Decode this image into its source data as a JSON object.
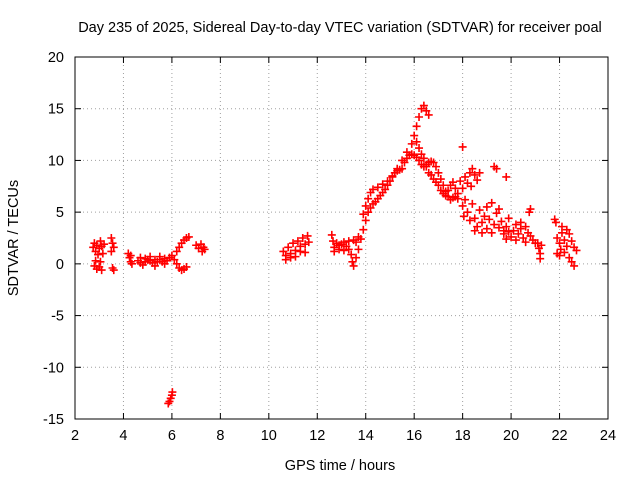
{
  "chart_data": {
    "type": "scatter",
    "title": "Day 235 of 2025, Sidereal Day-to-day VTEC variation (SDTVAR) for receiver poal",
    "xlabel": "GPS time / hours",
    "ylabel": "SDTVAR / TECUs",
    "xlim": [
      2,
      24
    ],
    "ylim": [
      -15,
      20
    ],
    "xticks": [
      2,
      4,
      6,
      8,
      10,
      12,
      14,
      16,
      18,
      20,
      22,
      24
    ],
    "yticks": [
      -15,
      -10,
      -5,
      0,
      5,
      10,
      15,
      20
    ],
    "grid": true,
    "marker": "+",
    "color": "#ff0000",
    "series": [
      {
        "name": "SDTVAR",
        "points": [
          [
            2.75,
            1.6
          ],
          [
            2.8,
            2.0
          ],
          [
            2.85,
            1.2
          ],
          [
            2.9,
            1.8
          ],
          [
            2.95,
            0.9
          ],
          [
            3.0,
            1.5
          ],
          [
            3.05,
            2.2
          ],
          [
            3.1,
            1.7
          ],
          [
            3.15,
            1.0
          ],
          [
            3.2,
            1.9
          ],
          [
            2.8,
            -0.2
          ],
          [
            2.9,
            -0.5
          ],
          [
            3.0,
            -0.3
          ],
          [
            3.1,
            -0.6
          ],
          [
            2.85,
            0.3
          ],
          [
            3.05,
            0.2
          ],
          [
            3.5,
            2.5
          ],
          [
            3.55,
            2.0
          ],
          [
            3.5,
            1.2
          ],
          [
            3.6,
            1.6
          ],
          [
            3.55,
            -0.4
          ],
          [
            3.6,
            -0.6
          ],
          [
            4.2,
            1.0
          ],
          [
            4.25,
            0.6
          ],
          [
            4.3,
            0.8
          ],
          [
            4.3,
            0.2
          ],
          [
            4.35,
            0.0
          ],
          [
            4.6,
            0.3
          ],
          [
            4.7,
            0.1
          ],
          [
            4.8,
            -0.1
          ],
          [
            4.9,
            0.2
          ],
          [
            5.0,
            0.4
          ],
          [
            5.1,
            0.3
          ],
          [
            5.2,
            0.1
          ],
          [
            5.3,
            -0.2
          ],
          [
            5.4,
            0.2
          ],
          [
            5.5,
            0.4
          ],
          [
            5.6,
            0.2
          ],
          [
            5.7,
            0.0
          ],
          [
            5.8,
            0.3
          ],
          [
            4.7,
            0.6
          ],
          [
            4.9,
            0.5
          ],
          [
            5.1,
            0.7
          ],
          [
            5.3,
            0.4
          ],
          [
            5.5,
            0.7
          ],
          [
            5.7,
            0.5
          ],
          [
            5.9,
            0.6
          ],
          [
            6.0,
            0.8
          ],
          [
            6.1,
            0.4
          ],
          [
            6.2,
            0.0
          ],
          [
            6.3,
            -0.4
          ],
          [
            6.4,
            -0.6
          ],
          [
            6.5,
            -0.5
          ],
          [
            6.6,
            -0.3
          ],
          [
            6.2,
            1.2
          ],
          [
            6.3,
            1.6
          ],
          [
            6.4,
            2.0
          ],
          [
            6.5,
            2.3
          ],
          [
            6.6,
            2.5
          ],
          [
            6.7,
            2.6
          ],
          [
            7.0,
            1.8
          ],
          [
            7.1,
            1.5
          ],
          [
            7.2,
            1.9
          ],
          [
            7.25,
            1.2
          ],
          [
            7.3,
            1.6
          ],
          [
            7.35,
            1.4
          ],
          [
            5.85,
            -13.5
          ],
          [
            5.9,
            -13.3
          ],
          [
            5.95,
            -13.0
          ],
          [
            6.0,
            -12.7
          ],
          [
            6.02,
            -12.4
          ],
          [
            10.6,
            1.2
          ],
          [
            10.7,
            0.8
          ],
          [
            10.8,
            1.6
          ],
          [
            10.9,
            1.0
          ],
          [
            11.0,
            2.0
          ],
          [
            11.1,
            1.3
          ],
          [
            11.2,
            2.2
          ],
          [
            11.3,
            1.7
          ],
          [
            11.4,
            2.5
          ],
          [
            11.5,
            1.9
          ],
          [
            11.6,
            2.7
          ],
          [
            11.65,
            2.1
          ],
          [
            10.7,
            0.4
          ],
          [
            10.9,
            0.6
          ],
          [
            11.1,
            0.7
          ],
          [
            11.3,
            1.2
          ],
          [
            11.5,
            1.1
          ],
          [
            12.6,
            2.8
          ],
          [
            12.65,
            2.2
          ],
          [
            12.7,
            1.6
          ],
          [
            12.8,
            2.0
          ],
          [
            12.9,
            1.8
          ],
          [
            13.0,
            1.9
          ],
          [
            13.1,
            2.1
          ],
          [
            13.2,
            1.7
          ],
          [
            13.3,
            1.4
          ],
          [
            13.4,
            0.9
          ],
          [
            13.45,
            0.2
          ],
          [
            13.5,
            -0.2
          ],
          [
            12.7,
            1.2
          ],
          [
            12.9,
            1.4
          ],
          [
            13.1,
            1.3
          ],
          [
            13.3,
            2.2
          ],
          [
            13.5,
            2.3
          ],
          [
            13.6,
            2.1
          ],
          [
            13.7,
            2.6
          ],
          [
            13.6,
            0.6
          ],
          [
            13.7,
            1.4
          ],
          [
            13.8,
            2.4
          ],
          [
            13.9,
            3.3
          ],
          [
            14.0,
            4.2
          ],
          [
            14.1,
            5.0
          ],
          [
            14.2,
            5.4
          ],
          [
            14.3,
            5.8
          ],
          [
            14.4,
            6.0
          ],
          [
            14.5,
            6.3
          ],
          [
            14.6,
            6.6
          ],
          [
            14.7,
            6.9
          ],
          [
            14.8,
            7.2
          ],
          [
            14.9,
            7.6
          ],
          [
            15.0,
            8.0
          ],
          [
            15.1,
            8.4
          ],
          [
            15.2,
            8.8
          ],
          [
            15.3,
            9.0
          ],
          [
            15.4,
            9.1
          ],
          [
            13.9,
            4.8
          ],
          [
            14.0,
            5.6
          ],
          [
            14.1,
            6.3
          ],
          [
            14.2,
            6.9
          ],
          [
            14.3,
            7.2
          ],
          [
            14.5,
            7.4
          ],
          [
            14.7,
            7.7
          ],
          [
            14.9,
            8.0
          ],
          [
            15.1,
            8.5
          ],
          [
            15.3,
            9.2
          ],
          [
            15.5,
            10.0
          ],
          [
            15.7,
            10.8
          ],
          [
            15.9,
            11.6
          ],
          [
            16.0,
            12.4
          ],
          [
            16.1,
            13.3
          ],
          [
            16.2,
            14.2
          ],
          [
            16.3,
            15.0
          ],
          [
            16.4,
            15.3
          ],
          [
            16.5,
            14.8
          ],
          [
            16.6,
            14.4
          ],
          [
            15.5,
            9.2
          ],
          [
            15.6,
            9.8
          ],
          [
            15.7,
            10.2
          ],
          [
            15.8,
            10.5
          ],
          [
            15.9,
            10.6
          ],
          [
            16.0,
            10.5
          ],
          [
            16.1,
            10.3
          ],
          [
            16.2,
            10.0
          ],
          [
            16.3,
            9.6
          ],
          [
            16.4,
            9.4
          ],
          [
            16.5,
            9.6
          ],
          [
            16.6,
            9.8
          ],
          [
            16.7,
            9.9
          ],
          [
            16.8,
            9.8
          ],
          [
            16.9,
            9.4
          ],
          [
            17.0,
            8.8
          ],
          [
            17.1,
            8.2
          ],
          [
            17.2,
            7.6
          ],
          [
            17.3,
            7.0
          ],
          [
            17.4,
            6.5
          ],
          [
            17.5,
            6.2
          ],
          [
            17.6,
            6.4
          ],
          [
            17.7,
            6.5
          ],
          [
            17.8,
            6.3
          ],
          [
            16.1,
            11.8
          ],
          [
            16.2,
            11.2
          ],
          [
            16.3,
            10.6
          ],
          [
            16.4,
            10.2
          ],
          [
            16.5,
            9.4
          ],
          [
            16.6,
            8.8
          ],
          [
            16.7,
            8.6
          ],
          [
            16.8,
            8.2
          ],
          [
            16.9,
            7.9
          ],
          [
            17.0,
            7.6
          ],
          [
            17.1,
            7.1
          ],
          [
            17.2,
            6.8
          ],
          [
            17.3,
            6.6
          ],
          [
            17.4,
            7.1
          ],
          [
            17.5,
            7.6
          ],
          [
            17.6,
            7.9
          ],
          [
            17.7,
            7.3
          ],
          [
            17.8,
            6.8
          ],
          [
            17.9,
            8.0
          ],
          [
            18.0,
            7.3
          ],
          [
            18.1,
            8.4
          ],
          [
            18.2,
            7.8
          ],
          [
            18.3,
            8.8
          ],
          [
            18.4,
            9.2
          ],
          [
            18.5,
            8.6
          ],
          [
            18.6,
            8.1
          ],
          [
            18.0,
            11.3
          ],
          [
            18.35,
            7.5
          ],
          [
            18.7,
            8.8
          ],
          [
            19.3,
            9.4
          ],
          [
            19.4,
            9.2
          ],
          [
            19.8,
            8.4
          ],
          [
            18.0,
            5.6
          ],
          [
            18.05,
            4.6
          ],
          [
            18.1,
            6.2
          ],
          [
            18.2,
            5.0
          ],
          [
            18.3,
            4.2
          ],
          [
            18.4,
            5.8
          ],
          [
            18.5,
            4.4
          ],
          [
            18.6,
            3.6
          ],
          [
            18.7,
            5.2
          ],
          [
            18.8,
            4.0
          ],
          [
            18.9,
            4.6
          ],
          [
            19.0,
            5.5
          ],
          [
            19.1,
            4.3
          ],
          [
            19.2,
            5.9
          ],
          [
            19.3,
            3.8
          ],
          [
            19.4,
            4.9
          ],
          [
            19.5,
            5.3
          ],
          [
            19.6,
            4.1
          ],
          [
            19.7,
            3.2
          ],
          [
            19.8,
            3.6
          ],
          [
            19.9,
            4.4
          ],
          [
            18.5,
            3.2
          ],
          [
            18.8,
            3.0
          ],
          [
            19.0,
            3.4
          ],
          [
            19.2,
            3.0
          ],
          [
            19.5,
            3.5
          ],
          [
            19.7,
            2.9
          ],
          [
            19.8,
            2.4
          ],
          [
            19.9,
            3.1
          ],
          [
            20.0,
            2.6
          ],
          [
            20.1,
            3.2
          ],
          [
            20.2,
            2.3
          ],
          [
            20.3,
            2.9
          ],
          [
            20.4,
            3.4
          ],
          [
            20.5,
            2.5
          ],
          [
            20.6,
            2.1
          ],
          [
            20.7,
            3.0
          ],
          [
            20.8,
            2.7
          ],
          [
            20.9,
            2.3
          ],
          [
            21.0,
            2.0
          ],
          [
            20.2,
            3.8
          ],
          [
            20.4,
            4.0
          ],
          [
            20.6,
            3.6
          ],
          [
            20.8,
            5.3
          ],
          [
            20.75,
            5.0
          ],
          [
            21.1,
            2.0
          ],
          [
            21.15,
            1.5
          ],
          [
            21.2,
            1.0
          ],
          [
            21.2,
            0.5
          ],
          [
            21.25,
            1.8
          ],
          [
            21.8,
            4.3
          ],
          [
            21.85,
            4.0
          ],
          [
            21.9,
            2.5
          ],
          [
            22.0,
            2.0
          ],
          [
            22.05,
            1.4
          ],
          [
            22.1,
            3.0
          ],
          [
            22.2,
            2.3
          ],
          [
            22.3,
            1.7
          ],
          [
            22.4,
            2.9
          ],
          [
            22.5,
            2.2
          ],
          [
            22.6,
            1.6
          ],
          [
            22.7,
            1.3
          ],
          [
            21.9,
            1.0
          ],
          [
            22.0,
            0.8
          ],
          [
            22.2,
            1.1
          ],
          [
            22.4,
            0.6
          ],
          [
            22.5,
            0.2
          ],
          [
            22.6,
            -0.2
          ],
          [
            22.1,
            3.6
          ],
          [
            22.3,
            3.3
          ]
        ]
      }
    ]
  }
}
